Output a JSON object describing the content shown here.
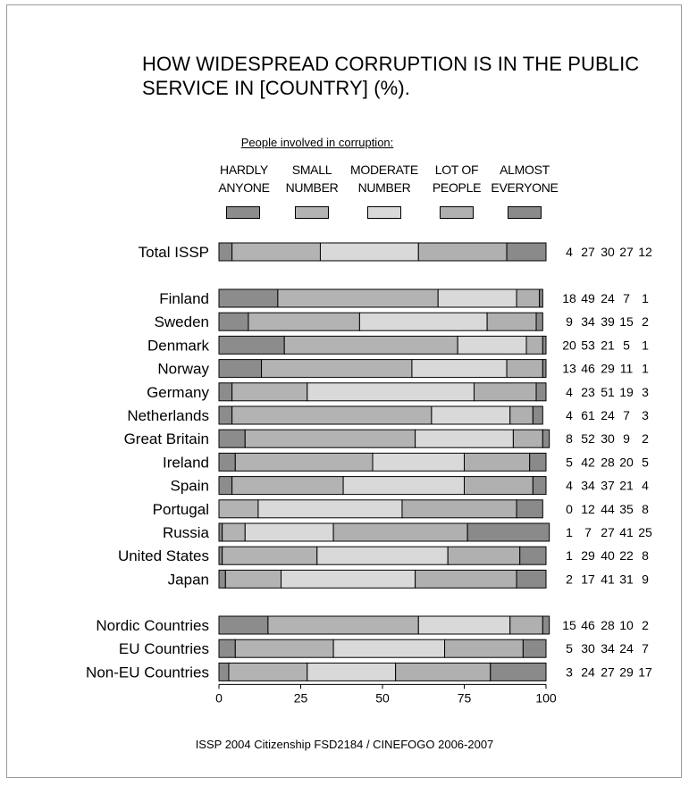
{
  "title_lines": [
    "HOW WIDESPREAD  CORRUPTION IS IN THE PUBLIC",
    "SERVICE IN [COUNTRY] (%)."
  ],
  "legend": {
    "heading": "People involved in corruption:",
    "items": [
      {
        "line1": "HARDLY",
        "line2": "ANYONE"
      },
      {
        "line1": "SMALL",
        "line2": "NUMBER"
      },
      {
        "line1": "MODERATE",
        "line2": "NUMBER"
      },
      {
        "line1": "LOT OF",
        "line2": "PEOPLE"
      },
      {
        "line1": "ALMOST",
        "line2": "EVERYONE"
      }
    ]
  },
  "colors": [
    "#8c8c8c",
    "#b3b3b3",
    "#d9d9d9",
    "#b0b0b0",
    "#8a8a8a"
  ],
  "footer": "ISSP 2004  Citizenship  FSD2184 / CINEFOGO 2006-2007",
  "chart_data": {
    "type": "bar",
    "stacked": true,
    "orientation": "horizontal",
    "xlim": [
      0,
      100
    ],
    "x_ticks": [
      "0",
      "25",
      "50",
      "75",
      "100"
    ],
    "series": [
      {
        "name": "HARDLY ANYONE"
      },
      {
        "name": "SMALL NUMBER"
      },
      {
        "name": "MODERATE NUMBER"
      },
      {
        "name": "LOT OF PEOPLE"
      },
      {
        "name": "ALMOST EVERYONE"
      }
    ],
    "groups": [
      {
        "rows": [
          {
            "label": "Total ISSP",
            "values": [
              4,
              27,
              30,
              27,
              12
            ]
          }
        ]
      },
      {
        "rows": [
          {
            "label": "Finland",
            "values": [
              18,
              49,
              24,
              7,
              1
            ]
          },
          {
            "label": "Sweden",
            "values": [
              9,
              34,
              39,
              15,
              2
            ]
          },
          {
            "label": "Denmark",
            "values": [
              20,
              53,
              21,
              5,
              1
            ]
          },
          {
            "label": "Norway",
            "values": [
              13,
              46,
              29,
              11,
              1
            ]
          },
          {
            "label": "Germany",
            "values": [
              4,
              23,
              51,
              19,
              3
            ]
          },
          {
            "label": "Netherlands",
            "values": [
              4,
              61,
              24,
              7,
              3
            ]
          },
          {
            "label": "Great Britain",
            "values": [
              8,
              52,
              30,
              9,
              2
            ]
          },
          {
            "label": "Ireland",
            "values": [
              5,
              42,
              28,
              20,
              5
            ]
          },
          {
            "label": "Spain",
            "values": [
              4,
              34,
              37,
              21,
              4
            ]
          },
          {
            "label": "Portugal",
            "values": [
              0,
              12,
              44,
              35,
              8
            ]
          },
          {
            "label": "Russia",
            "values": [
              1,
              7,
              27,
              41,
              25
            ]
          },
          {
            "label": "United States",
            "values": [
              1,
              29,
              40,
              22,
              8
            ]
          },
          {
            "label": "Japan",
            "values": [
              2,
              17,
              41,
              31,
              9
            ]
          }
        ]
      },
      {
        "rows": [
          {
            "label": "Nordic Countries",
            "values": [
              15,
              46,
              28,
              10,
              2
            ]
          },
          {
            "label": "EU Countries",
            "values": [
              5,
              30,
              34,
              24,
              7
            ]
          },
          {
            "label": "Non-EU Countries",
            "values": [
              3,
              24,
              27,
              29,
              17
            ]
          }
        ]
      }
    ]
  }
}
